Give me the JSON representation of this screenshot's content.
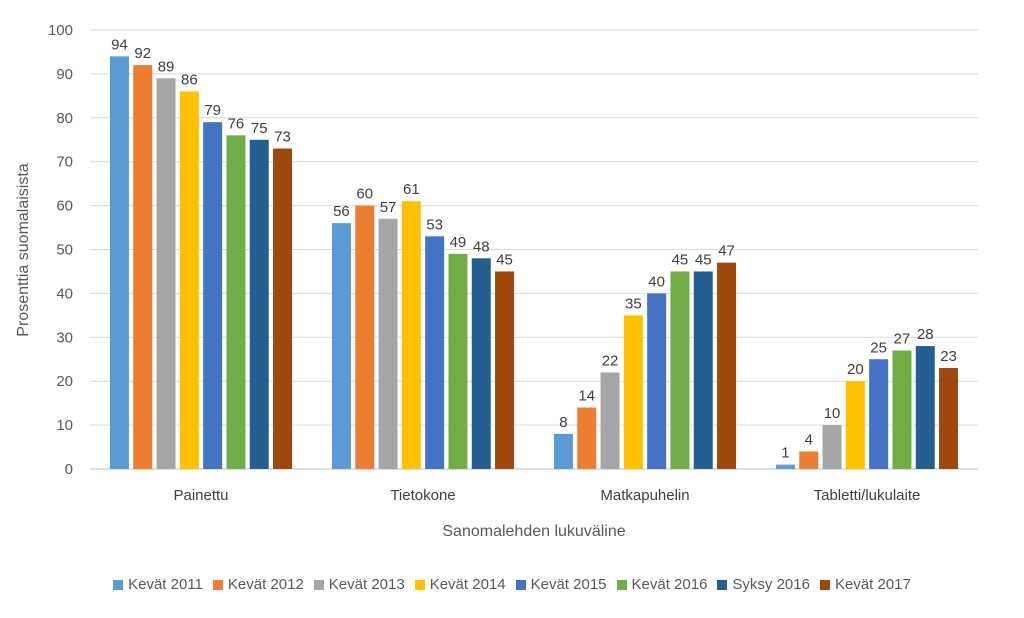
{
  "chart_data": {
    "type": "bar",
    "ylabel": "Prosenttia suomalaisista",
    "xlabel": "Sanomalehden lukuväline",
    "ylim": [
      0,
      100
    ],
    "yticks": [
      0,
      10,
      20,
      30,
      40,
      50,
      60,
      70,
      80,
      90,
      100
    ],
    "grid": true,
    "legend_position": "bottom",
    "categories": [
      "Painettu",
      "Tietokone",
      "Matkapuhelin",
      "Tabletti/lukulaite"
    ],
    "series": [
      {
        "name": "Kevät 2011",
        "color": "#5B9BD5",
        "values": [
          94,
          56,
          8,
          1
        ]
      },
      {
        "name": "Kevät 2012",
        "color": "#ED7D31",
        "values": [
          92,
          60,
          14,
          4
        ]
      },
      {
        "name": "Kevät 2013",
        "color": "#A5A5A5",
        "values": [
          89,
          57,
          22,
          10
        ]
      },
      {
        "name": "Kevät 2014",
        "color": "#FFC000",
        "values": [
          86,
          61,
          35,
          20
        ]
      },
      {
        "name": "Kevät 2015",
        "color": "#4472C4",
        "values": [
          79,
          53,
          40,
          25
        ]
      },
      {
        "name": "Kevät 2016",
        "color": "#70AD47",
        "values": [
          76,
          49,
          45,
          27
        ]
      },
      {
        "name": "Syksy 2016",
        "color": "#255E91",
        "values": [
          75,
          48,
          45,
          28
        ]
      },
      {
        "name": "Kevät 2017",
        "color": "#9E480E",
        "values": [
          73,
          45,
          47,
          23
        ]
      }
    ]
  }
}
